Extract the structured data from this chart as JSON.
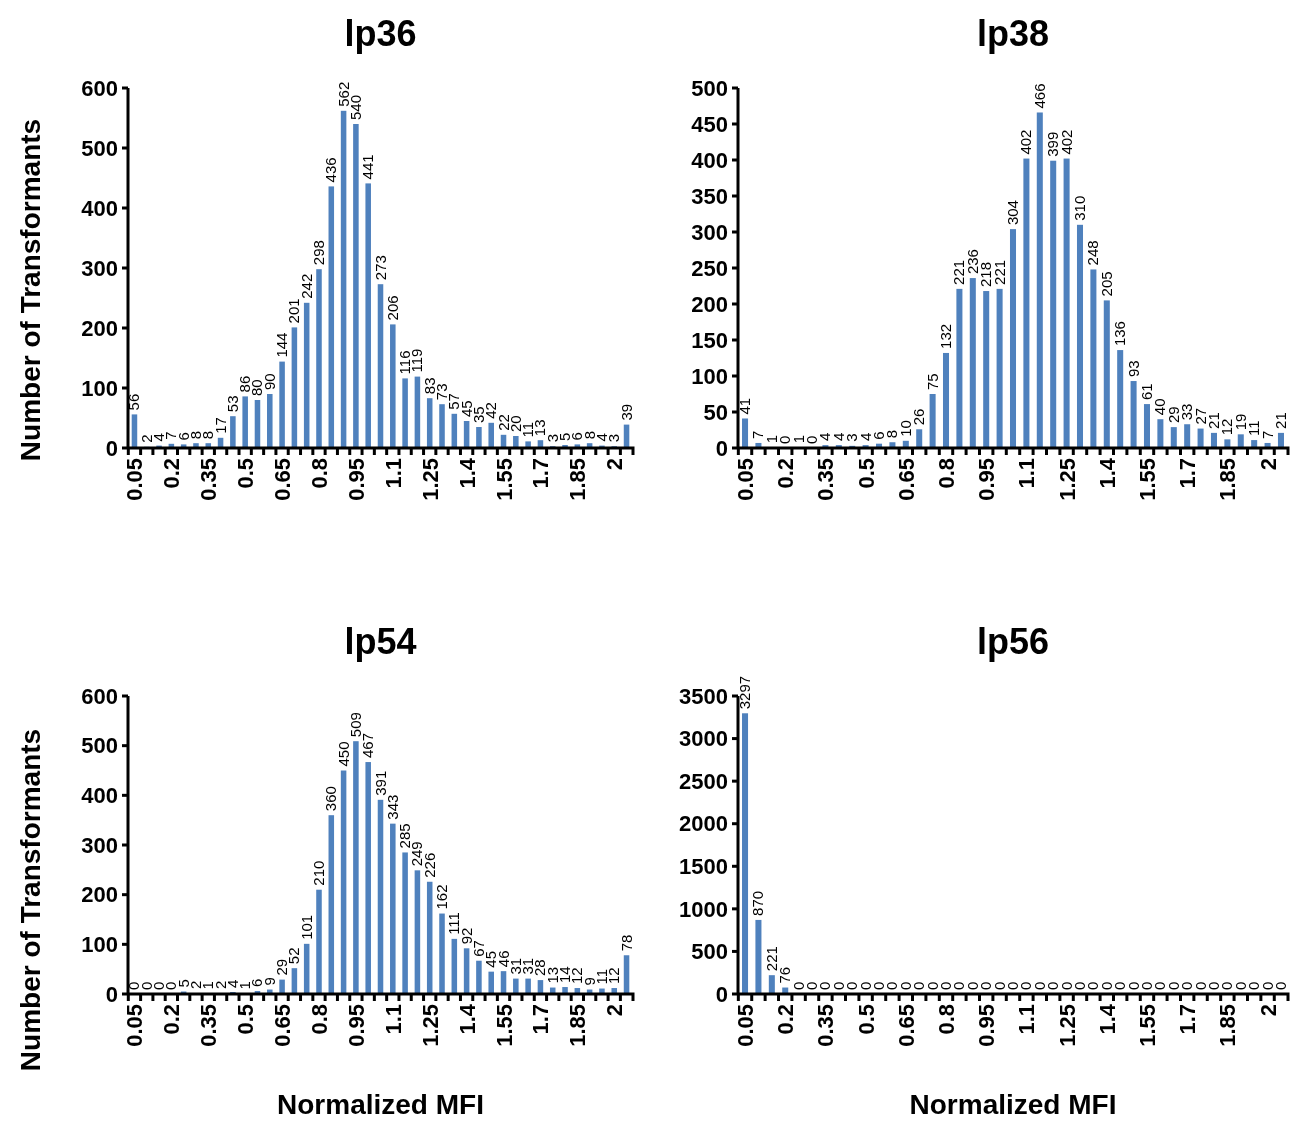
{
  "chart_data": [
    {
      "type": "bar",
      "title": "lp36",
      "ylabel": "Number of Transformants",
      "categories": [
        "0.05",
        null,
        null,
        "0.2",
        null,
        null,
        "0.35",
        null,
        null,
        "0.5",
        null,
        null,
        "0.65",
        null,
        null,
        "0.8",
        null,
        null,
        "0.95",
        null,
        null,
        "1.1",
        null,
        null,
        "1.25",
        null,
        null,
        "1.4",
        null,
        null,
        "1.55",
        null,
        null,
        "1.7",
        null,
        null,
        "1.85",
        null,
        null,
        "2",
        null
      ],
      "color": "#4f81bd",
      "values": [
        56,
        2,
        4,
        7,
        6,
        8,
        8,
        17,
        53,
        86,
        80,
        90,
        144,
        201,
        242,
        298,
        436,
        562,
        540,
        441,
        273,
        206,
        116,
        119,
        83,
        73,
        57,
        45,
        35,
        42,
        22,
        20,
        11,
        13,
        3,
        5,
        6,
        8,
        4,
        3,
        39
      ],
      "ylim": [
        0,
        600
      ],
      "yticks": [
        0,
        100,
        200,
        300,
        400,
        500,
        600
      ],
      "data_labels": true
    },
    {
      "type": "bar",
      "title": "lp38",
      "categories": [
        "0.05",
        null,
        null,
        "0.2",
        null,
        null,
        "0.35",
        null,
        null,
        "0.5",
        null,
        null,
        "0.65",
        null,
        null,
        "0.8",
        null,
        null,
        "0.95",
        null,
        null,
        "1.1",
        null,
        null,
        "1.25",
        null,
        null,
        "1.4",
        null,
        null,
        "1.55",
        null,
        null,
        "1.7",
        null,
        null,
        "1.85",
        null,
        null,
        "2",
        null
      ],
      "color": "#4f81bd",
      "values": [
        41,
        7,
        1,
        0,
        1,
        0,
        4,
        4,
        3,
        4,
        6,
        8,
        10,
        26,
        75,
        132,
        221,
        236,
        218,
        221,
        304,
        402,
        466,
        399,
        402,
        310,
        248,
        205,
        136,
        93,
        61,
        40,
        29,
        33,
        27,
        21,
        12,
        19,
        11,
        7,
        21
      ],
      "ylim": [
        0,
        500
      ],
      "yticks": [
        0,
        50,
        100,
        150,
        200,
        250,
        300,
        350,
        400,
        450,
        500
      ],
      "data_labels": true
    },
    {
      "type": "bar",
      "title": "lp54",
      "xlabel": "Normalized MFI",
      "ylabel": "Number of Transformants",
      "categories": [
        "0.05",
        null,
        null,
        "0.2",
        null,
        null,
        "0.35",
        null,
        null,
        "0.5",
        null,
        null,
        "0.65",
        null,
        null,
        "0.8",
        null,
        null,
        "0.95",
        null,
        null,
        "1.1",
        null,
        null,
        "1.25",
        null,
        null,
        "1.4",
        null,
        null,
        "1.55",
        null,
        null,
        "1.7",
        null,
        null,
        "1.85",
        null,
        null,
        "2",
        null
      ],
      "color": "#4f81bd",
      "values": [
        0,
        0,
        0,
        0,
        5,
        2,
        1,
        2,
        4,
        1,
        6,
        9,
        29,
        52,
        101,
        210,
        360,
        450,
        509,
        467,
        391,
        343,
        285,
        249,
        226,
        162,
        111,
        92,
        67,
        45,
        46,
        31,
        31,
        28,
        13,
        14,
        12,
        9,
        11,
        12,
        78
      ],
      "ylim": [
        0,
        600
      ],
      "yticks": [
        0,
        100,
        200,
        300,
        400,
        500,
        600
      ],
      "data_labels": true
    },
    {
      "type": "bar",
      "title": "lp56",
      "xlabel": "Normalized MFI",
      "categories": [
        "0.05",
        null,
        null,
        "0.2",
        null,
        null,
        "0.35",
        null,
        null,
        "0.5",
        null,
        null,
        "0.65",
        null,
        null,
        "0.8",
        null,
        null,
        "0.95",
        null,
        null,
        "1.1",
        null,
        null,
        "1.25",
        null,
        null,
        "1.4",
        null,
        null,
        "1.55",
        null,
        null,
        "1.7",
        null,
        null,
        "1.85",
        null,
        null,
        "2",
        null
      ],
      "color": "#4f81bd",
      "values": [
        3297,
        870,
        221,
        76,
        0,
        0,
        0,
        0,
        0,
        0,
        0,
        0,
        0,
        0,
        0,
        0,
        0,
        0,
        0,
        0,
        0,
        0,
        0,
        0,
        0,
        0,
        0,
        0,
        0,
        0,
        0,
        0,
        0,
        0,
        0,
        0,
        0,
        0,
        0,
        0,
        0
      ],
      "ylim": [
        0,
        3500
      ],
      "yticks": [
        0,
        500,
        1000,
        1500,
        2000,
        2500,
        3000,
        3500
      ],
      "data_labels": true
    }
  ]
}
